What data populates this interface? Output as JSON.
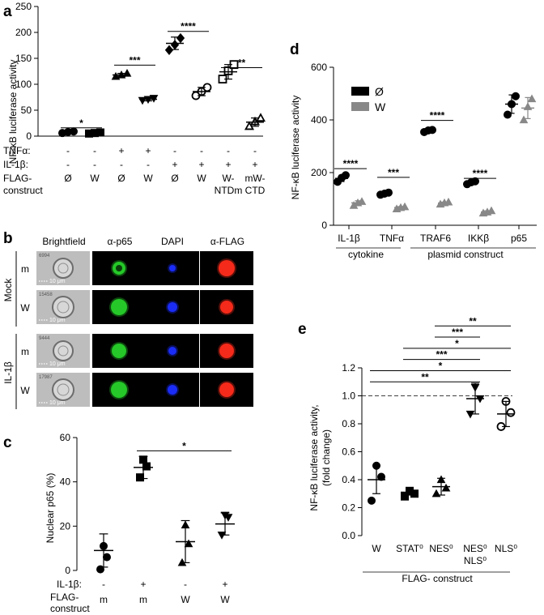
{
  "panel_a": {
    "letter": "a",
    "ylabel": "NF-κB luciferase activity",
    "row_labels": [
      "TNFα:",
      "IL-1β:",
      "FLAG-",
      "construct"
    ],
    "tnf_values": [
      "-",
      "-",
      "+",
      "+",
      "-",
      "-",
      "-",
      "-"
    ],
    "il1_values": [
      "-",
      "-",
      "-",
      "-",
      "+",
      "+",
      "+",
      "+"
    ],
    "construct_values": [
      "Ø",
      "W",
      "Ø",
      "W",
      "Ø",
      "W",
      "W-",
      "mW-"
    ],
    "construct_values2": [
      "",
      "",
      "",
      "",
      "",
      "",
      "NTDm",
      "CTD"
    ]
  },
  "panel_b": {
    "letter": "b",
    "column_headers": [
      "Brightfield",
      "α-p65",
      "DAPI",
      "α-FLAG"
    ],
    "group_labels": [
      "Mock",
      "IL-1β"
    ],
    "row_labels": [
      "m",
      "W",
      "m",
      "W"
    ],
    "cell_ids": [
      "6994",
      "15458",
      "9444",
      "17987"
    ],
    "scale_label": "10 μm"
  },
  "panel_c": {
    "letter": "c",
    "ylabel": "Nuclear p65 (%)",
    "row_labels": [
      "IL-1β:",
      "FLAG-",
      "construct"
    ],
    "il1_values": [
      "-",
      "+",
      "-",
      "+"
    ],
    "construct_values": [
      "m",
      "m",
      "W",
      "W"
    ]
  },
  "panel_d": {
    "letter": "d",
    "ylabel": "NF-κB luciferase activity",
    "legend": [
      "Ø",
      "W"
    ],
    "group_labels": [
      "cytokine",
      "plasmid construct"
    ]
  },
  "panel_e": {
    "letter": "e",
    "ylabel_line1": "NF-κB luciferase activity,",
    "ylabel_line2": "(fold change)",
    "xlabel": "FLAG- construct",
    "cat_line2": [
      "",
      "",
      "",
      "NLS⁰",
      ""
    ]
  },
  "chart_data": [
    {
      "id": "a",
      "type": "scatter",
      "ylim": [
        0,
        250
      ],
      "yticks": [
        0,
        50,
        100,
        150,
        200,
        250
      ],
      "series": [
        {
          "marker": "circle-filled",
          "values": [
            6,
            8,
            9
          ]
        },
        {
          "marker": "square-filled",
          "values": [
            5,
            6,
            7
          ]
        },
        {
          "marker": "triangle-filled",
          "values": [
            115,
            118,
            121
          ]
        },
        {
          "marker": "triangle-down-filled",
          "values": [
            69,
            71,
            73
          ]
        },
        {
          "marker": "diamond-filled",
          "values": [
            166,
            176,
            189
          ]
        },
        {
          "marker": "circle-open",
          "values": [
            78,
            86,
            94
          ]
        },
        {
          "marker": "square-open",
          "values": [
            110,
            126,
            138
          ]
        },
        {
          "marker": "triangle-open",
          "values": [
            19,
            28,
            35
          ]
        }
      ],
      "means": [
        7,
        6,
        118,
        71,
        179,
        86,
        124,
        27
      ],
      "sd": [
        2,
        1,
        3,
        3,
        12,
        8,
        14,
        8
      ],
      "significance": [
        {
          "from": 0,
          "to": 1,
          "label": "*",
          "y": 16
        },
        {
          "from": 2,
          "to": 3,
          "label": "***",
          "y": 137
        },
        {
          "from": 4,
          "to": 5,
          "label": "****",
          "y": 202
        },
        {
          "from": 6,
          "to": 7,
          "label": "**",
          "y": 132
        }
      ]
    },
    {
      "id": "c",
      "type": "scatter",
      "ylim": [
        0,
        60
      ],
      "yticks": [
        0,
        20,
        40,
        60
      ],
      "series": [
        {
          "marker": "circle-filled",
          "values": [
            0.5,
            6,
            11
          ]
        },
        {
          "marker": "square-filled",
          "values": [
            42,
            47,
            50
          ]
        },
        {
          "marker": "triangle-filled",
          "values": [
            3.5,
            12,
            20.5
          ]
        },
        {
          "marker": "triangle-down-filled",
          "values": [
            16,
            24,
            25
          ]
        }
      ],
      "means": [
        9,
        46.5,
        13,
        21
      ],
      "sd": [
        7.5,
        5,
        9.5,
        5
      ],
      "significance": [
        {
          "from": 1,
          "to": 3,
          "label": "*",
          "y": 54
        }
      ]
    },
    {
      "id": "d",
      "type": "scatter",
      "ylim": [
        0,
        600
      ],
      "yticks": [
        0,
        200,
        400,
        600
      ],
      "categories": [
        "IL-1β",
        "TNFα",
        "TRAF6",
        "IKKβ",
        "p65"
      ],
      "series": [
        {
          "name": "Ø",
          "color": "#000000",
          "marker": "circle-filled",
          "values": [
            [
              165,
              180,
              190
            ],
            [
              116,
              120,
              124
            ],
            [
              354,
              360,
              362
            ],
            [
              156,
              163,
              167
            ],
            [
              420,
              460,
              490
            ]
          ]
        },
        {
          "name": "W",
          "color": "#888888",
          "marker": "triangle-filled",
          "values": [
            [
              75,
              85,
              90
            ],
            [
              62,
              67,
              70
            ],
            [
              80,
              85,
              88
            ],
            [
              46,
              50,
              55
            ],
            [
              400,
              450,
              480
            ]
          ]
        }
      ],
      "means": [
        [
          178,
          85
        ],
        [
          120,
          67
        ],
        [
          359,
          84
        ],
        [
          162,
          50
        ],
        [
          460,
          445
        ]
      ],
      "sd": [
        [
          12,
          8
        ],
        [
          4,
          4
        ],
        [
          4,
          4
        ],
        [
          5,
          5
        ],
        [
          35,
          40
        ]
      ],
      "significance": [
        {
          "cat": 0,
          "label": "****",
          "y": 215
        },
        {
          "cat": 1,
          "label": "***",
          "y": 182
        },
        {
          "cat": 2,
          "label": "****",
          "y": 398
        },
        {
          "cat": 3,
          "label": "****",
          "y": 178
        }
      ]
    },
    {
      "id": "e",
      "type": "scatter",
      "ylim": [
        0.0,
        1.2
      ],
      "yticks": [
        "0.0",
        "0.2",
        "0.4",
        "0.6",
        "0.8",
        "1.0",
        "1.2"
      ],
      "categories": [
        "W",
        "STAT⁰",
        "NES⁰",
        "NES⁰",
        "NLS⁰"
      ],
      "series": [
        {
          "marker": "circle-filled",
          "values": [
            0.25,
            0.42,
            0.5
          ]
        },
        {
          "marker": "square-filled",
          "values": [
            0.28,
            0.3,
            0.32
          ]
        },
        {
          "marker": "triangle-filled",
          "values": [
            0.3,
            0.34,
            0.4
          ]
        },
        {
          "marker": "triangle-down-filled",
          "values": [
            0.87,
            0.98,
            1.06
          ]
        },
        {
          "marker": "circle-open",
          "values": [
            0.78,
            0.88,
            0.96
          ]
        }
      ],
      "means": [
        0.4,
        0.31,
        0.35,
        0.98,
        0.87
      ],
      "sd": [
        0.1,
        0.02,
        0.06,
        0.11,
        0.09
      ],
      "reference_line": 1.0,
      "significance": [
        {
          "from": 0,
          "to": 3,
          "label": "**",
          "y": 1.1
        },
        {
          "from": 0,
          "to": 4,
          "label": "*",
          "y": 1.18
        },
        {
          "from": 1,
          "to": 3,
          "label": "***",
          "y": 1.26
        },
        {
          "from": 1,
          "to": 4,
          "label": "*",
          "y": 1.34
        },
        {
          "from": 2,
          "to": 3,
          "label": "***",
          "y": 1.42
        },
        {
          "from": 2,
          "to": 4,
          "label": "**",
          "y": 1.5
        }
      ]
    }
  ]
}
